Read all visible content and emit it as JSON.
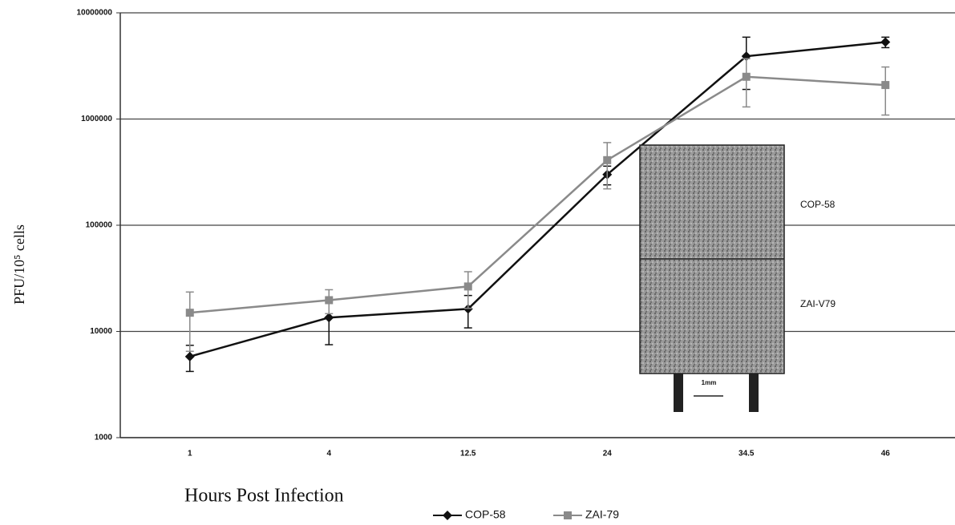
{
  "chart_data": {
    "type": "line",
    "y_label": "PFU/10⁵ cells",
    "x_label": "Hours Post Infection",
    "categories": [
      "1",
      "4",
      "12.5",
      "24",
      "34.5",
      "46"
    ],
    "series": [
      {
        "name": "COP-58",
        "color": "#111111",
        "marker": "diamond",
        "values": [
          5800,
          13500,
          16300,
          300000,
          3900000,
          5300000
        ],
        "errors": [
          1600,
          6000,
          5500,
          60000,
          2000000,
          600000
        ]
      },
      {
        "name": "ZAI-79",
        "color": "#8a8a8a",
        "marker": "square",
        "values": [
          15000,
          19700,
          26500,
          410000,
          2500000,
          2090000
        ],
        "errors": [
          8500,
          5000,
          10000,
          190000,
          1200000,
          1000000
        ]
      }
    ],
    "ylim": [
      1000,
      10000000
    ],
    "yticks": [
      1000,
      10000,
      100000,
      1000000,
      10000000
    ],
    "log_scale_y": true,
    "grid": true,
    "legend": "bottom",
    "annotations": [
      "COP-58",
      "ZAI-V79",
      "1mm"
    ]
  }
}
